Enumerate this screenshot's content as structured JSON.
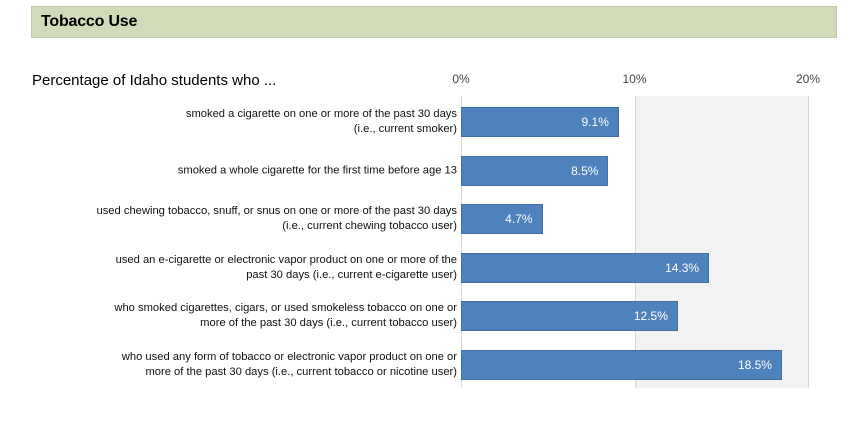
{
  "header": {
    "title": "Tobacco Use"
  },
  "chart_data": {
    "type": "bar",
    "orientation": "horizontal",
    "title": "Percentage of Idaho students who ...",
    "xlim": [
      0,
      20
    ],
    "ticks": [
      "0%",
      "10%",
      "20%"
    ],
    "tick_values": [
      0,
      10,
      20
    ],
    "shaded_band": [
      10,
      20
    ],
    "categories": [
      [
        "smoked a cigarette on one or more of the past 30 days",
        "(i.e., current smoker)"
      ],
      [
        "smoked a whole cigarette for the first time before age 13"
      ],
      [
        "used chewing tobacco, snuff, or snus on one or more of the past 30 days",
        "(i.e., current chewing tobacco user)"
      ],
      [
        "used an e-cigarette or electronic vapor product on one or more of the",
        "past 30 days (i.e., current e-cigarette user)"
      ],
      [
        "who smoked cigarettes, cigars, or used smokeless tobacco on one or",
        "more of the past 30 days (i.e., current tobacco user)"
      ],
      [
        "who used any form of tobacco or electronic vapor product on one or",
        "more of the past 30 days (i.e.,  current tobacco or nicotine user)"
      ]
    ],
    "values": [
      9.1,
      8.5,
      4.7,
      14.3,
      12.5,
      18.5
    ],
    "value_labels": [
      "9.1%",
      "8.5%",
      "4.7%",
      "14.3%",
      "12.5%",
      "18.5%"
    ],
    "colors": {
      "bar": "#4f81bd",
      "band": "#f2f2f2",
      "header": "#d2dbb9"
    }
  }
}
